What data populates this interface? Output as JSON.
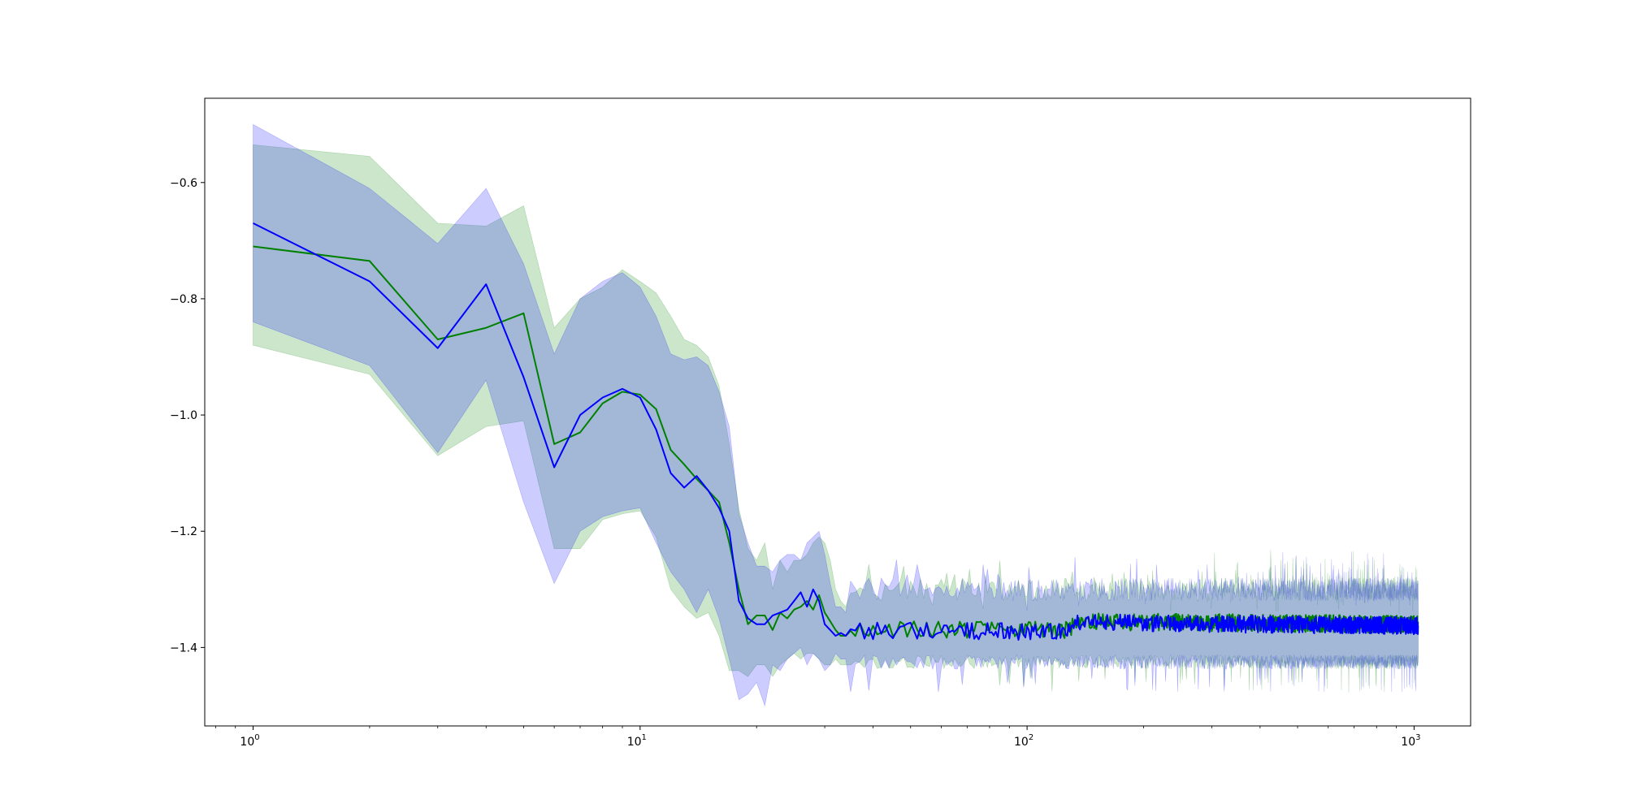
{
  "chart_data": {
    "type": "line",
    "title": "",
    "xlabel": "",
    "ylabel": "",
    "xscale": "log",
    "xlim": [
      0.75,
      1400
    ],
    "ylim": [
      -1.535,
      -0.455
    ],
    "grid": false,
    "legend": "none",
    "x_ticks": [
      {
        "value": 1,
        "base": "10",
        "exp": "0"
      },
      {
        "value": 10,
        "base": "10",
        "exp": "1"
      },
      {
        "value": 100,
        "base": "10",
        "exp": "2"
      },
      {
        "value": 1000,
        "base": "10",
        "exp": "3"
      }
    ],
    "y_ticks": [
      {
        "value": -0.6,
        "label": "−0.6"
      },
      {
        "value": -0.8,
        "label": "−0.8"
      },
      {
        "value": -1.0,
        "label": "−1.0"
      },
      {
        "value": -1.2,
        "label": "−1.2"
      },
      {
        "value": -1.4,
        "label": "−1.4"
      }
    ],
    "series": [
      {
        "color": "#008000",
        "band_color": "#008000",
        "band_opacity": 0.2,
        "line_width": 2,
        "x": [
          1,
          2,
          3,
          4,
          5,
          6,
          7,
          8,
          9,
          10,
          11,
          12,
          13,
          14,
          15,
          16,
          17,
          18,
          19,
          20,
          21,
          22,
          23,
          24,
          25,
          26,
          27,
          28,
          29,
          30,
          31,
          32,
          33,
          34
        ],
        "y": [
          -0.71,
          -0.735,
          -0.87,
          -0.85,
          -0.825,
          -1.05,
          -1.03,
          -0.98,
          -0.96,
          -0.965,
          -0.99,
          -1.06,
          -1.085,
          -1.11,
          -1.13,
          -1.15,
          -1.22,
          -1.3,
          -1.36,
          -1.345,
          -1.345,
          -1.37,
          -1.34,
          -1.35,
          -1.335,
          -1.33,
          -1.32,
          -1.335,
          -1.31,
          -1.34,
          -1.355,
          -1.37,
          -1.38,
          -1.38
        ],
        "lower": [
          -0.88,
          -0.93,
          -1.07,
          -1.02,
          -1.01,
          -1.23,
          -1.23,
          -1.18,
          -1.17,
          -1.165,
          -1.21,
          -1.3,
          -1.33,
          -1.35,
          -1.34,
          -1.38,
          -1.44,
          -1.44,
          -1.45,
          -1.43,
          -1.43,
          -1.45,
          -1.43,
          -1.42,
          -1.41,
          -1.42,
          -1.41,
          -1.41,
          -1.42,
          -1.43,
          -1.43,
          -1.42,
          -1.43,
          -1.43
        ],
        "upper": [
          -0.535,
          -0.555,
          -0.67,
          -0.675,
          -0.64,
          -0.85,
          -0.8,
          -0.78,
          -0.75,
          -0.77,
          -0.79,
          -0.83,
          -0.87,
          -0.88,
          -0.9,
          -0.95,
          -1.05,
          -1.16,
          -1.23,
          -1.25,
          -1.22,
          -1.3,
          -1.25,
          -1.27,
          -1.25,
          -1.25,
          -1.24,
          -1.22,
          -1.21,
          -1.22,
          -1.25,
          -1.3,
          -1.32,
          -1.33
        ],
        "tail": {
          "x_start": 34,
          "x_end": 1024,
          "mean": -1.37,
          "amp": -0.012,
          "band_low": -1.425,
          "band_high": -1.3,
          "spike_amp": 0.08
        }
      },
      {
        "color": "#0000ff",
        "band_color": "#0000ff",
        "band_opacity": 0.2,
        "line_width": 2,
        "x": [
          1,
          2,
          3,
          4,
          5,
          6,
          7,
          8,
          9,
          10,
          11,
          12,
          13,
          14,
          15,
          16,
          17,
          18,
          19,
          20,
          21,
          22,
          23,
          24,
          25,
          26,
          27,
          28,
          29,
          30,
          31,
          32,
          33,
          34
        ],
        "y": [
          -0.67,
          -0.77,
          -0.885,
          -0.775,
          -0.935,
          -1.09,
          -1.0,
          -0.97,
          -0.955,
          -0.97,
          -1.025,
          -1.1,
          -1.125,
          -1.105,
          -1.13,
          -1.16,
          -1.2,
          -1.32,
          -1.35,
          -1.36,
          -1.36,
          -1.345,
          -1.34,
          -1.335,
          -1.32,
          -1.305,
          -1.33,
          -1.3,
          -1.32,
          -1.36,
          -1.37,
          -1.38,
          -1.375,
          -1.38
        ],
        "lower": [
          -0.84,
          -0.915,
          -1.065,
          -0.94,
          -1.15,
          -1.29,
          -1.2,
          -1.175,
          -1.165,
          -1.16,
          -1.22,
          -1.27,
          -1.3,
          -1.34,
          -1.3,
          -1.35,
          -1.42,
          -1.49,
          -1.48,
          -1.46,
          -1.5,
          -1.43,
          -1.44,
          -1.42,
          -1.41,
          -1.4,
          -1.43,
          -1.41,
          -1.42,
          -1.44,
          -1.43,
          -1.41,
          -1.42,
          -1.42
        ],
        "upper": [
          -0.5,
          -0.61,
          -0.705,
          -0.61,
          -0.74,
          -0.895,
          -0.8,
          -0.77,
          -0.755,
          -0.78,
          -0.83,
          -0.895,
          -0.905,
          -0.9,
          -0.915,
          -0.96,
          -1.02,
          -1.17,
          -1.22,
          -1.26,
          -1.26,
          -1.27,
          -1.25,
          -1.24,
          -1.24,
          -1.25,
          -1.22,
          -1.21,
          -1.2,
          -1.24,
          -1.29,
          -1.33,
          -1.33,
          -1.34
        ],
        "tail": {
          "x_start": 34,
          "x_end": 1024,
          "mean": -1.372,
          "amp": -0.012,
          "band_low": -1.425,
          "band_high": -1.3,
          "spike_amp": 0.08
        }
      }
    ]
  }
}
